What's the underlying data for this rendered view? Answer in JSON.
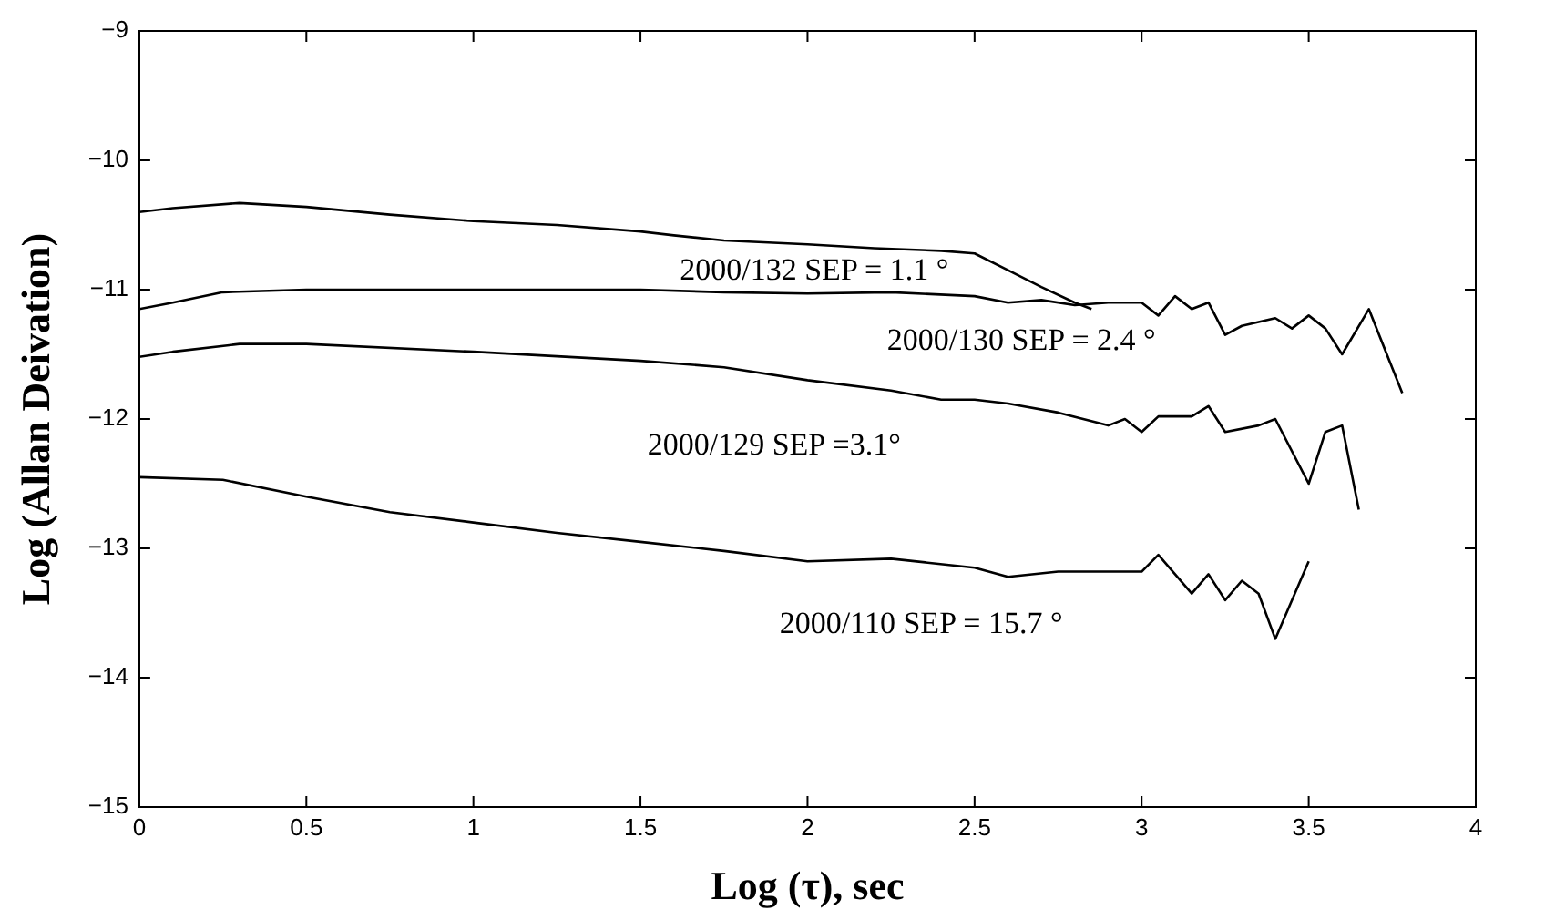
{
  "chart_data": {
    "type": "line",
    "xlabel": "Log (τ), sec",
    "ylabel": "Log (Allan Deivation)",
    "xlim": [
      0,
      4
    ],
    "xticks": [
      0,
      0.5,
      1,
      1.5,
      2,
      2.5,
      3,
      3.5,
      4
    ],
    "ylim": [
      -15,
      -9
    ],
    "yticks": [
      -15,
      -14,
      -13,
      -12,
      -11,
      -10,
      -9
    ],
    "grid": false,
    "legend": false,
    "marker": "none",
    "line_style": "solid",
    "series": [
      {
        "name": "2000/132 SEP = 1.1 °",
        "color": "#000000",
        "x": [
          0,
          0.1,
          0.3,
          0.5,
          0.75,
          1,
          1.25,
          1.5,
          1.6,
          1.75,
          2,
          2.2,
          2.4,
          2.5,
          2.6,
          2.7,
          2.8,
          2.85
        ],
        "values": [
          -10.4,
          -10.37,
          -10.33,
          -10.36,
          -10.42,
          -10.47,
          -10.5,
          -10.55,
          -10.58,
          -10.62,
          -10.65,
          -10.68,
          -10.7,
          -10.72,
          -10.85,
          -10.98,
          -11.1,
          -11.15
        ]
      },
      {
        "name": "2000/130 SEP = 2.4 °",
        "color": "#000000",
        "x": [
          0,
          0.1,
          0.25,
          0.5,
          1,
          1.5,
          1.75,
          2,
          2.25,
          2.5,
          2.6,
          2.7,
          2.8,
          2.9,
          3,
          3.05,
          3.1,
          3.15,
          3.2,
          3.25,
          3.3,
          3.4,
          3.45,
          3.5,
          3.55,
          3.6,
          3.68,
          3.78
        ],
        "values": [
          -11.15,
          -11.1,
          -11.02,
          -11,
          -11,
          -11,
          -11.02,
          -11.03,
          -11.02,
          -11.05,
          -11.1,
          -11.08,
          -11.12,
          -11.1,
          -11.1,
          -11.2,
          -11.05,
          -11.15,
          -11.1,
          -11.35,
          -11.28,
          -11.22,
          -11.3,
          -11.2,
          -11.3,
          -11.5,
          -11.15,
          -11.8
        ]
      },
      {
        "name": "2000/129 SEP =3.1°",
        "color": "#000000",
        "x": [
          0,
          0.1,
          0.3,
          0.5,
          1,
          1.5,
          1.75,
          2,
          2.25,
          2.4,
          2.5,
          2.6,
          2.75,
          2.9,
          2.95,
          3,
          3.05,
          3.15,
          3.2,
          3.25,
          3.35,
          3.4,
          3.5,
          3.55,
          3.6,
          3.65
        ],
        "values": [
          -11.52,
          -11.48,
          -11.42,
          -11.42,
          -11.48,
          -11.55,
          -11.6,
          -11.7,
          -11.78,
          -11.85,
          -11.85,
          -11.88,
          -11.95,
          -12.05,
          -12,
          -12.1,
          -11.98,
          -11.98,
          -11.9,
          -12.1,
          -12.05,
          -12,
          -12.5,
          -12.1,
          -12.05,
          -12.7
        ]
      },
      {
        "name": "2000/110 SEP = 15.7 °",
        "color": "#000000",
        "x": [
          0,
          0.25,
          0.5,
          0.75,
          1,
          1.25,
          1.5,
          1.75,
          2,
          2.25,
          2.5,
          2.6,
          2.75,
          3,
          3.05,
          3.1,
          3.15,
          3.2,
          3.25,
          3.3,
          3.35,
          3.4,
          3.5
        ],
        "values": [
          -12.45,
          -12.47,
          -12.6,
          -12.72,
          -12.8,
          -12.88,
          -12.95,
          -13.02,
          -13.1,
          -13.08,
          -13.15,
          -13.22,
          -13.18,
          -13.18,
          -13.05,
          -13.2,
          -13.35,
          -13.2,
          -13.4,
          -13.25,
          -13.35,
          -13.7,
          -13.1
        ]
      }
    ]
  }
}
